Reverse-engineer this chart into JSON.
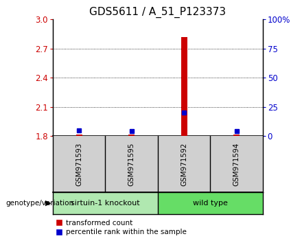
{
  "title": "GDS5611 / A_51_P123373",
  "samples": [
    "GSM971593",
    "GSM971595",
    "GSM971592",
    "GSM971594"
  ],
  "groups": [
    "sirtuin-1 knockout",
    "sirtuin-1 knockout",
    "wild type",
    "wild type"
  ],
  "group_colors": {
    "sirtuin-1 knockout": "#b0e8b0",
    "wild type": "#66dd66"
  },
  "transformed_counts": [
    1.815,
    1.816,
    2.82,
    1.815
  ],
  "percentile_ranks_pct": [
    5,
    4,
    20,
    4
  ],
  "ylim_left": [
    1.8,
    3.0
  ],
  "yticks_left": [
    1.8,
    2.1,
    2.4,
    2.7,
    3.0
  ],
  "yticks_right": [
    0,
    25,
    50,
    75,
    100
  ],
  "bar_color_red": "#cc0000",
  "bar_color_blue": "#0000cc",
  "plot_bg": "#ffffff",
  "sample_box_color": "#d0d0d0",
  "group_label_left": "sirtuin-1 knockout",
  "group_label_right": "wild type",
  "legend_red": "transformed count",
  "legend_blue": "percentile rank within the sample",
  "genotype_label": "genotype/variation",
  "title_fontsize": 11,
  "axis_left_color": "#cc0000",
  "axis_right_color": "#0000cc"
}
